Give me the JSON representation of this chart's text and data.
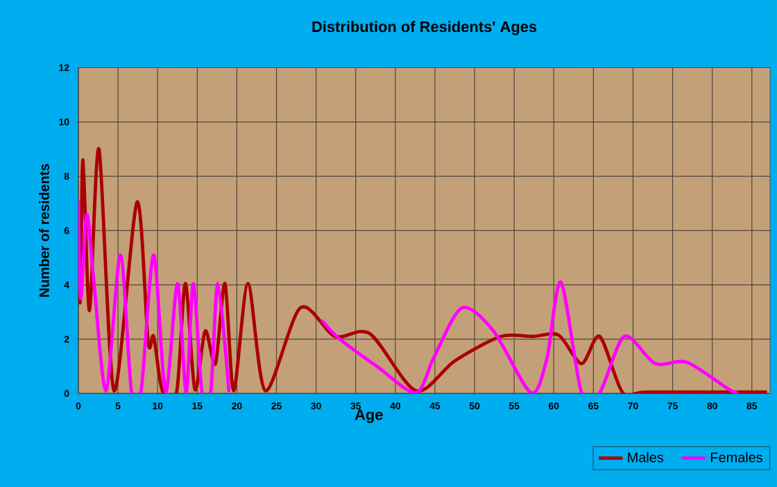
{
  "chart_data": {
    "type": "line",
    "title": "Distribution of Residents' Ages",
    "xlabel": "Age",
    "ylabel": "Number of residents",
    "xlim": [
      0,
      87.3
    ],
    "ylim": [
      0,
      12
    ],
    "xticks": [
      0,
      5,
      10,
      15,
      20,
      25,
      30,
      35,
      40,
      45,
      50,
      55,
      60,
      65,
      70,
      75,
      80,
      85
    ],
    "yticks": [
      0,
      2,
      4,
      6,
      8,
      10,
      12
    ],
    "grid": true,
    "legend": "bottom right",
    "marker": "none",
    "line_style": "solid",
    "series": [
      {
        "name": "Males",
        "color": "#aa0000",
        "x": [
          0,
          0.23,
          0.58,
          1.4,
          2.6,
          4.5,
          7.4,
          8.8,
          9.5,
          10.6,
          12.4,
          13.5,
          14.7,
          16.0,
          17.3,
          18.5,
          19.6,
          21.4,
          23.6,
          28.0,
          32.4,
          36.8,
          42.6,
          47.5,
          53.3,
          57.4,
          60.6,
          63.5,
          65.8,
          68.7,
          71.9,
          86.9
        ],
        "values": [
          5.2,
          3.4,
          8.6,
          3.05,
          9.0,
          0.1,
          7.05,
          1.9,
          2.1,
          0.1,
          0.05,
          4.05,
          0.15,
          2.3,
          1.1,
          4.05,
          0.1,
          4.05,
          0.1,
          3.15,
          2.1,
          2.2,
          0.1,
          1.2,
          2.1,
          2.1,
          2.15,
          1.1,
          2.1,
          0.03,
          0.05,
          0.05
        ]
      },
      {
        "name": "Females",
        "color": "#ff00ff",
        "x": [
          0,
          0.3,
          1.05,
          1.9,
          3.5,
          5.3,
          6.7,
          7.9,
          9.5,
          11.0,
          12.5,
          13.6,
          14.5,
          15.6,
          16.7,
          17.6,
          19.0,
          25,
          30.7,
          33.0,
          37.9,
          42.6,
          44.9,
          48.4,
          52.4,
          57.1,
          59.1,
          60.9,
          63.5,
          65.8,
          68.9,
          72.8,
          76.8,
          82.1,
          83.3
        ],
        "values": [
          7.1,
          3.5,
          6.6,
          4.3,
          0.1,
          5.1,
          0.05,
          0.05,
          5.1,
          0.05,
          4.05,
          0.05,
          4.05,
          0.05,
          0.05,
          4.05,
          0.05,
          null,
          2.7,
          2.0,
          0.95,
          0.03,
          1.35,
          3.15,
          2.3,
          0.03,
          1.25,
          4.1,
          0.03,
          0.03,
          2.1,
          1.1,
          1.15,
          0.15,
          0.03
        ]
      }
    ]
  }
}
